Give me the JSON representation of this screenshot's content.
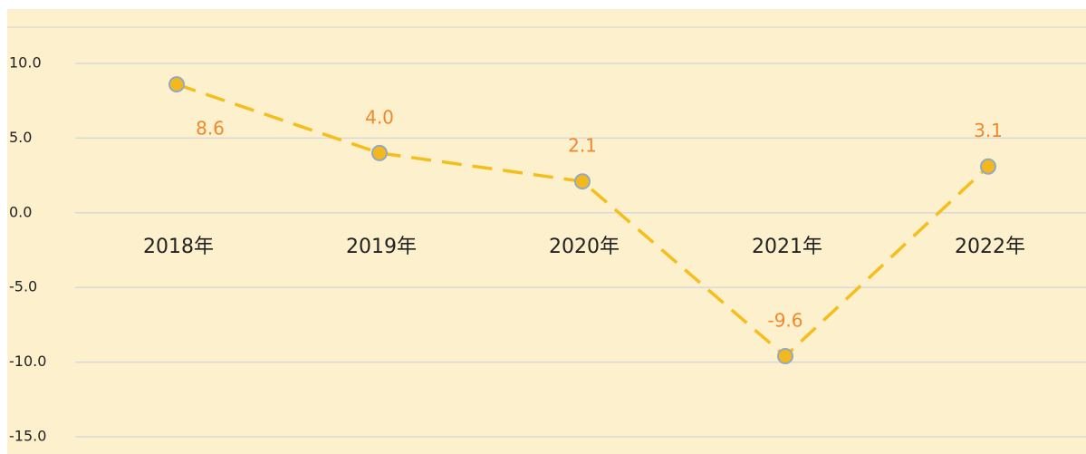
{
  "chart_data": {
    "type": "line",
    "categories": [
      "2018年",
      "2019年",
      "2020年",
      "2021年",
      "2022年"
    ],
    "series": [
      {
        "values": [
          8.6,
          4.0,
          2.1,
          -9.6,
          3.1
        ],
        "value_labels": [
          "8.6",
          "4.0",
          "2.1",
          "-9.6",
          "3.1"
        ],
        "color": "#f5be1c"
      }
    ],
    "ylim": [
      -15,
      12.5
    ],
    "yticks": [
      {
        "value": -15,
        "label": "-15.0"
      },
      {
        "value": -10,
        "label": "-10.0"
      },
      {
        "value": -5,
        "label": "-5.0"
      },
      {
        "value": 0,
        "label": "0.0"
      },
      {
        "value": 5,
        "label": "5.0"
      },
      {
        "value": 10,
        "label": "10.0"
      }
    ],
    "grid": true
  }
}
